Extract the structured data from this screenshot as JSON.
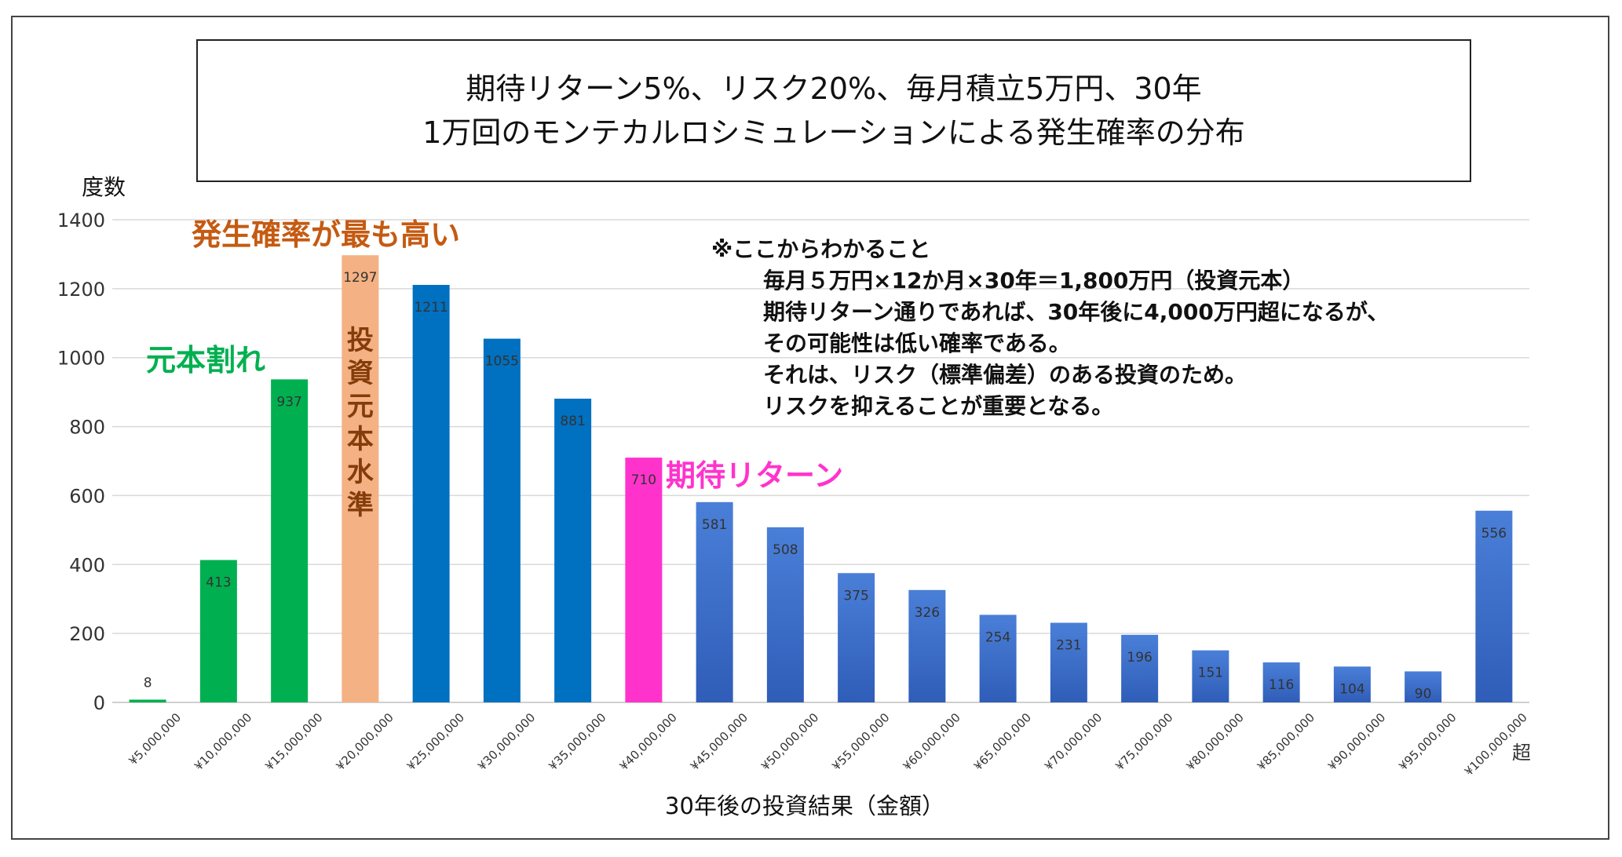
{
  "title": {
    "line1": "期待リターン5%、リスク20%、毎月積立5万円、30年",
    "line2": "1万回のモンテカルロシミュレーションによる発生確率の分布"
  },
  "annotations": {
    "note_heading": "※ここからわかること",
    "note_lines": [
      "毎月５万円×12か月×30年＝1,800万円（投資元本）",
      "期待リターン通りであれば、30年後に4,000万円超になるが、",
      "その可能性は低い確率である。",
      "それは、リスク（標準偏差）のある投資のため。",
      "リスクを抑えることが重要となる。"
    ],
    "max_prob_label": "発生確率が最も高い",
    "principal_loss_label": "元本割れ",
    "expected_return_label": "期待リターン",
    "principal_level_label": "投資元本水準",
    "over_suffix": "超"
  },
  "colors": {
    "principal_loss": "#00b050",
    "principal_level": "#f4b183",
    "above_principal": "#0070c0",
    "expected_return": "#ff33cc",
    "tail_gradient_top": "#4a7fd8",
    "tail_gradient_bottom": "#2f5db8",
    "max_prob_text": "#c55a11",
    "principal_level_text": "#843c0c",
    "gridline": "#d9d9d9"
  },
  "chart_data": {
    "type": "bar",
    "xlabel": "30年後の投資結果（金額）",
    "ylabel": "度数",
    "ylim": [
      0,
      1400
    ],
    "yticks": [
      0,
      200,
      400,
      600,
      800,
      1000,
      1200,
      1400
    ],
    "grid": true,
    "categories": [
      "¥5,000,000",
      "¥10,000,000",
      "¥15,000,000",
      "¥20,000,000",
      "¥25,000,000",
      "¥30,000,000",
      "¥35,000,000",
      "¥40,000,000",
      "¥45,000,000",
      "¥50,000,000",
      "¥55,000,000",
      "¥60,000,000",
      "¥65,000,000",
      "¥70,000,000",
      "¥75,000,000",
      "¥80,000,000",
      "¥85,000,000",
      "¥90,000,000",
      "¥95,000,000",
      "¥100,000,000"
    ],
    "values": [
      8,
      413,
      937,
      1297,
      1211,
      1055,
      881,
      710,
      581,
      508,
      375,
      326,
      254,
      231,
      196,
      151,
      116,
      104,
      90,
      556
    ],
    "bar_groups": [
      "principal_loss",
      "principal_loss",
      "principal_loss",
      "principal_level",
      "above_principal",
      "above_principal",
      "above_principal",
      "expected_return",
      "tail",
      "tail",
      "tail",
      "tail",
      "tail",
      "tail",
      "tail",
      "tail",
      "tail",
      "tail",
      "tail",
      "tail"
    ]
  }
}
